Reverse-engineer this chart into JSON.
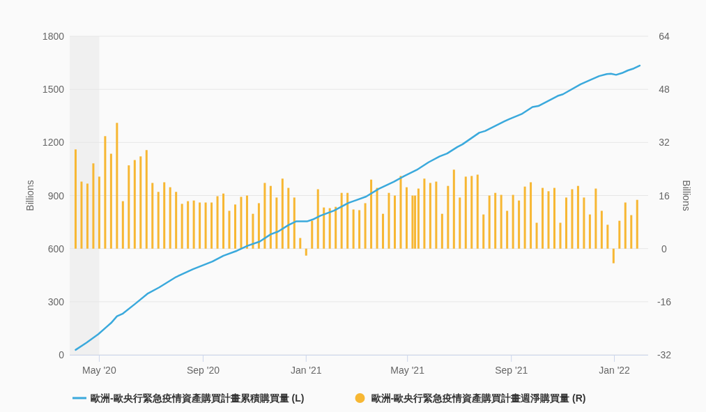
{
  "chart_data": {
    "type": "line",
    "xlabel": null,
    "ylabel": "Billions",
    "y2label": "Billions",
    "xlim": [
      "2020-03-27",
      "2022-02-10"
    ],
    "xticks": [
      {
        "value": "2020-05-01",
        "label": "May '20"
      },
      {
        "value": "2020-09-01",
        "label": "Sep '20"
      },
      {
        "value": "2021-01-01",
        "label": "Jan '21"
      },
      {
        "value": "2021-05-01",
        "label": "May '21"
      },
      {
        "value": "2021-09-01",
        "label": "Sep '21"
      },
      {
        "value": "2022-01-01",
        "label": "Jan '22"
      }
    ],
    "ylim": [
      0,
      1800
    ],
    "yticks": [
      0,
      300,
      600,
      900,
      1200,
      1500,
      1800
    ],
    "y2lim": [
      -32,
      64
    ],
    "y2ticks": [
      -32,
      -16,
      0,
      16,
      32,
      48,
      64
    ],
    "grid": "y",
    "legend": "bottom",
    "bands": [
      {
        "axis": "x",
        "from": "2020-03-27",
        "to": "2020-05-01",
        "color": "#f0f0f0"
      }
    ],
    "series": [
      {
        "name": "歐洲-歐央行緊急疫情資產購買計畫累積購買量 (L)",
        "color": "#3aa9dc",
        "x": [
          "2020-04-03",
          "2020-04-16",
          "2020-04-30",
          "2020-05-09",
          "2020-05-15",
          "2020-05-22",
          "2020-05-29",
          "2020-06-13",
          "2020-06-27",
          "2020-07-11",
          "2020-07-31",
          "2020-08-20",
          "2020-09-12",
          "2020-09-25",
          "2020-10-11",
          "2020-10-24",
          "2020-11-07",
          "2020-11-20",
          "2020-11-29",
          "2020-12-11",
          "2020-12-20",
          "2021-01-02",
          "2021-01-09",
          "2021-01-18",
          "2021-02-03",
          "2021-02-20",
          "2021-03-13",
          "2021-03-28",
          "2021-04-15",
          "2021-04-27",
          "2021-05-12",
          "2021-05-26",
          "2021-06-08",
          "2021-06-17",
          "2021-06-29",
          "2021-07-05",
          "2021-07-25",
          "2021-08-01",
          "2021-08-24",
          "2021-08-30",
          "2021-09-13",
          "2021-09-26",
          "2021-10-03",
          "2021-10-26",
          "2021-11-01",
          "2021-11-22",
          "2021-12-05",
          "2021-12-14",
          "2021-12-23",
          "2021-12-28",
          "2022-01-03",
          "2022-01-10",
          "2022-01-17",
          "2022-01-24",
          "2022-01-31"
        ],
        "values": [
          28,
          69,
          117,
          155,
          180,
          218,
          233,
          290,
          345,
          381,
          440,
          484,
          527,
          560,
          588,
          617,
          640,
          681,
          697,
          733,
          754,
          754,
          765,
          786,
          815,
          858,
          894,
          938,
          978,
          1010,
          1045,
          1088,
          1121,
          1138,
          1174,
          1189,
          1255,
          1265,
          1320,
          1333,
          1360,
          1400,
          1406,
          1463,
          1472,
          1529,
          1556,
          1575,
          1586,
          1588,
          1582,
          1592,
          1607,
          1618,
          1634
        ]
      },
      {
        "name": "歐洲-歐央行緊急疫情資產購買計畫週淨購買量 (R)",
        "type": "bar",
        "axis": "y2",
        "color": "#f7b733",
        "x": [
          "2020-04-03",
          "2020-04-10",
          "2020-04-17",
          "2020-04-24",
          "2020-05-01",
          "2020-05-08",
          "2020-05-15",
          "2020-05-22",
          "2020-05-29",
          "2020-06-05",
          "2020-06-12",
          "2020-06-19",
          "2020-06-26",
          "2020-07-03",
          "2020-07-10",
          "2020-07-17",
          "2020-07-24",
          "2020-07-31",
          "2020-08-07",
          "2020-08-14",
          "2020-08-21",
          "2020-08-28",
          "2020-09-04",
          "2020-09-11",
          "2020-09-18",
          "2020-09-25",
          "2020-10-02",
          "2020-10-09",
          "2020-10-16",
          "2020-10-23",
          "2020-10-30",
          "2020-11-06",
          "2020-11-13",
          "2020-11-20",
          "2020-11-27",
          "2020-12-04",
          "2020-12-11",
          "2020-12-18",
          "2020-12-25",
          "2021-01-01",
          "2021-01-08",
          "2021-01-15",
          "2021-01-22",
          "2021-01-29",
          "2021-02-05",
          "2021-02-12",
          "2021-02-19",
          "2021-02-26",
          "2021-03-05",
          "2021-03-12",
          "2021-03-19",
          "2021-03-26",
          "2021-04-02",
          "2021-04-09",
          "2021-04-16",
          "2021-04-23",
          "2021-04-30",
          "2021-05-07",
          "2021-05-10",
          "2021-05-14",
          "2021-05-21",
          "2021-05-28",
          "2021-06-04",
          "2021-06-11",
          "2021-06-18",
          "2021-06-25",
          "2021-07-02",
          "2021-07-09",
          "2021-07-16",
          "2021-07-23",
          "2021-07-30",
          "2021-08-06",
          "2021-08-13",
          "2021-08-20",
          "2021-08-27",
          "2021-09-03",
          "2021-09-10",
          "2021-09-17",
          "2021-09-24",
          "2021-10-01",
          "2021-10-08",
          "2021-10-15",
          "2021-10-22",
          "2021-10-29",
          "2021-11-05",
          "2021-11-12",
          "2021-11-19",
          "2021-11-26",
          "2021-12-03",
          "2021-12-10",
          "2021-12-17",
          "2021-12-24",
          "2021-12-31",
          "2022-01-07",
          "2022-01-14",
          "2022-01-21",
          "2022-01-28"
        ],
        "values": [
          29.9,
          20.2,
          19.6,
          25.7,
          21.7,
          33.9,
          28.6,
          37.9,
          14.3,
          25.1,
          26.7,
          27.8,
          29.7,
          19.8,
          17.1,
          20.0,
          18.5,
          17.1,
          13.5,
          14.3,
          14.5,
          13.9,
          13.9,
          13.9,
          15.8,
          16.6,
          11.4,
          13.3,
          15.6,
          16.0,
          10.5,
          13.7,
          19.8,
          18.9,
          15.4,
          21.1,
          18.3,
          15.4,
          3.2,
          -2.1,
          8.4,
          17.9,
          12.4,
          12.2,
          12.6,
          16.8,
          16.8,
          11.8,
          11.6,
          13.7,
          20.8,
          18.3,
          10.5,
          16.8,
          16.0,
          21.9,
          18.5,
          16.0,
          16.0,
          18.1,
          21.1,
          19.8,
          20.2,
          10.5,
          18.9,
          23.8,
          15.4,
          21.7,
          21.9,
          22.3,
          10.3,
          16.0,
          16.8,
          16.2,
          11.4,
          16.2,
          14.5,
          18.7,
          20.0,
          7.8,
          18.3,
          17.3,
          18.3,
          7.8,
          15.4,
          17.9,
          18.9,
          15.4,
          10.3,
          18.1,
          11.4,
          7.2,
          -4.4,
          8.4,
          13.9,
          10.1,
          14.7
        ]
      }
    ]
  }
}
